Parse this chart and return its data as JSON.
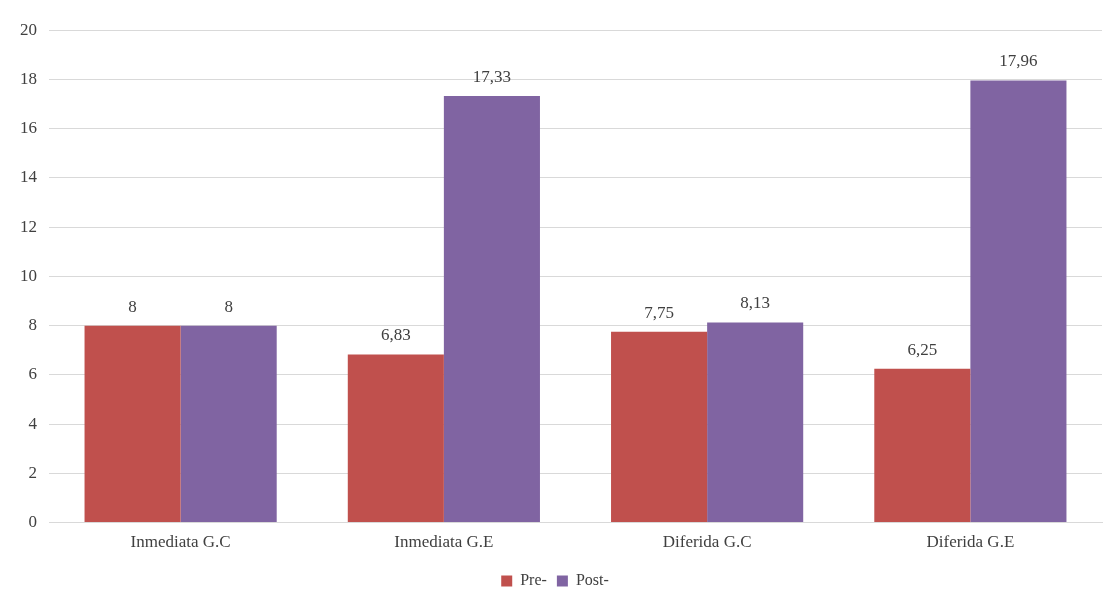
{
  "chart_data": {
    "type": "bar",
    "categories": [
      "Inmediata G.C",
      "Inmediata G.E",
      "Diferida G.C",
      "Diferida G.E"
    ],
    "series": [
      {
        "name": "Pre-",
        "color": "#c0504d",
        "values": [
          8,
          6.83,
          7.75,
          6.25
        ],
        "value_labels": [
          "8",
          "6,83",
          "7,75",
          "6,25"
        ]
      },
      {
        "name": "Post-",
        "color": "#8064a2",
        "values": [
          8,
          17.33,
          8.13,
          17.96
        ],
        "value_labels": [
          "8",
          "17,33",
          "8,13",
          "17,96"
        ]
      }
    ],
    "ylim": [
      0,
      20
    ],
    "yticks": [
      0,
      2,
      4,
      6,
      8,
      10,
      12,
      14,
      16,
      18,
      20
    ],
    "grid": "y",
    "legend": "bottom"
  }
}
